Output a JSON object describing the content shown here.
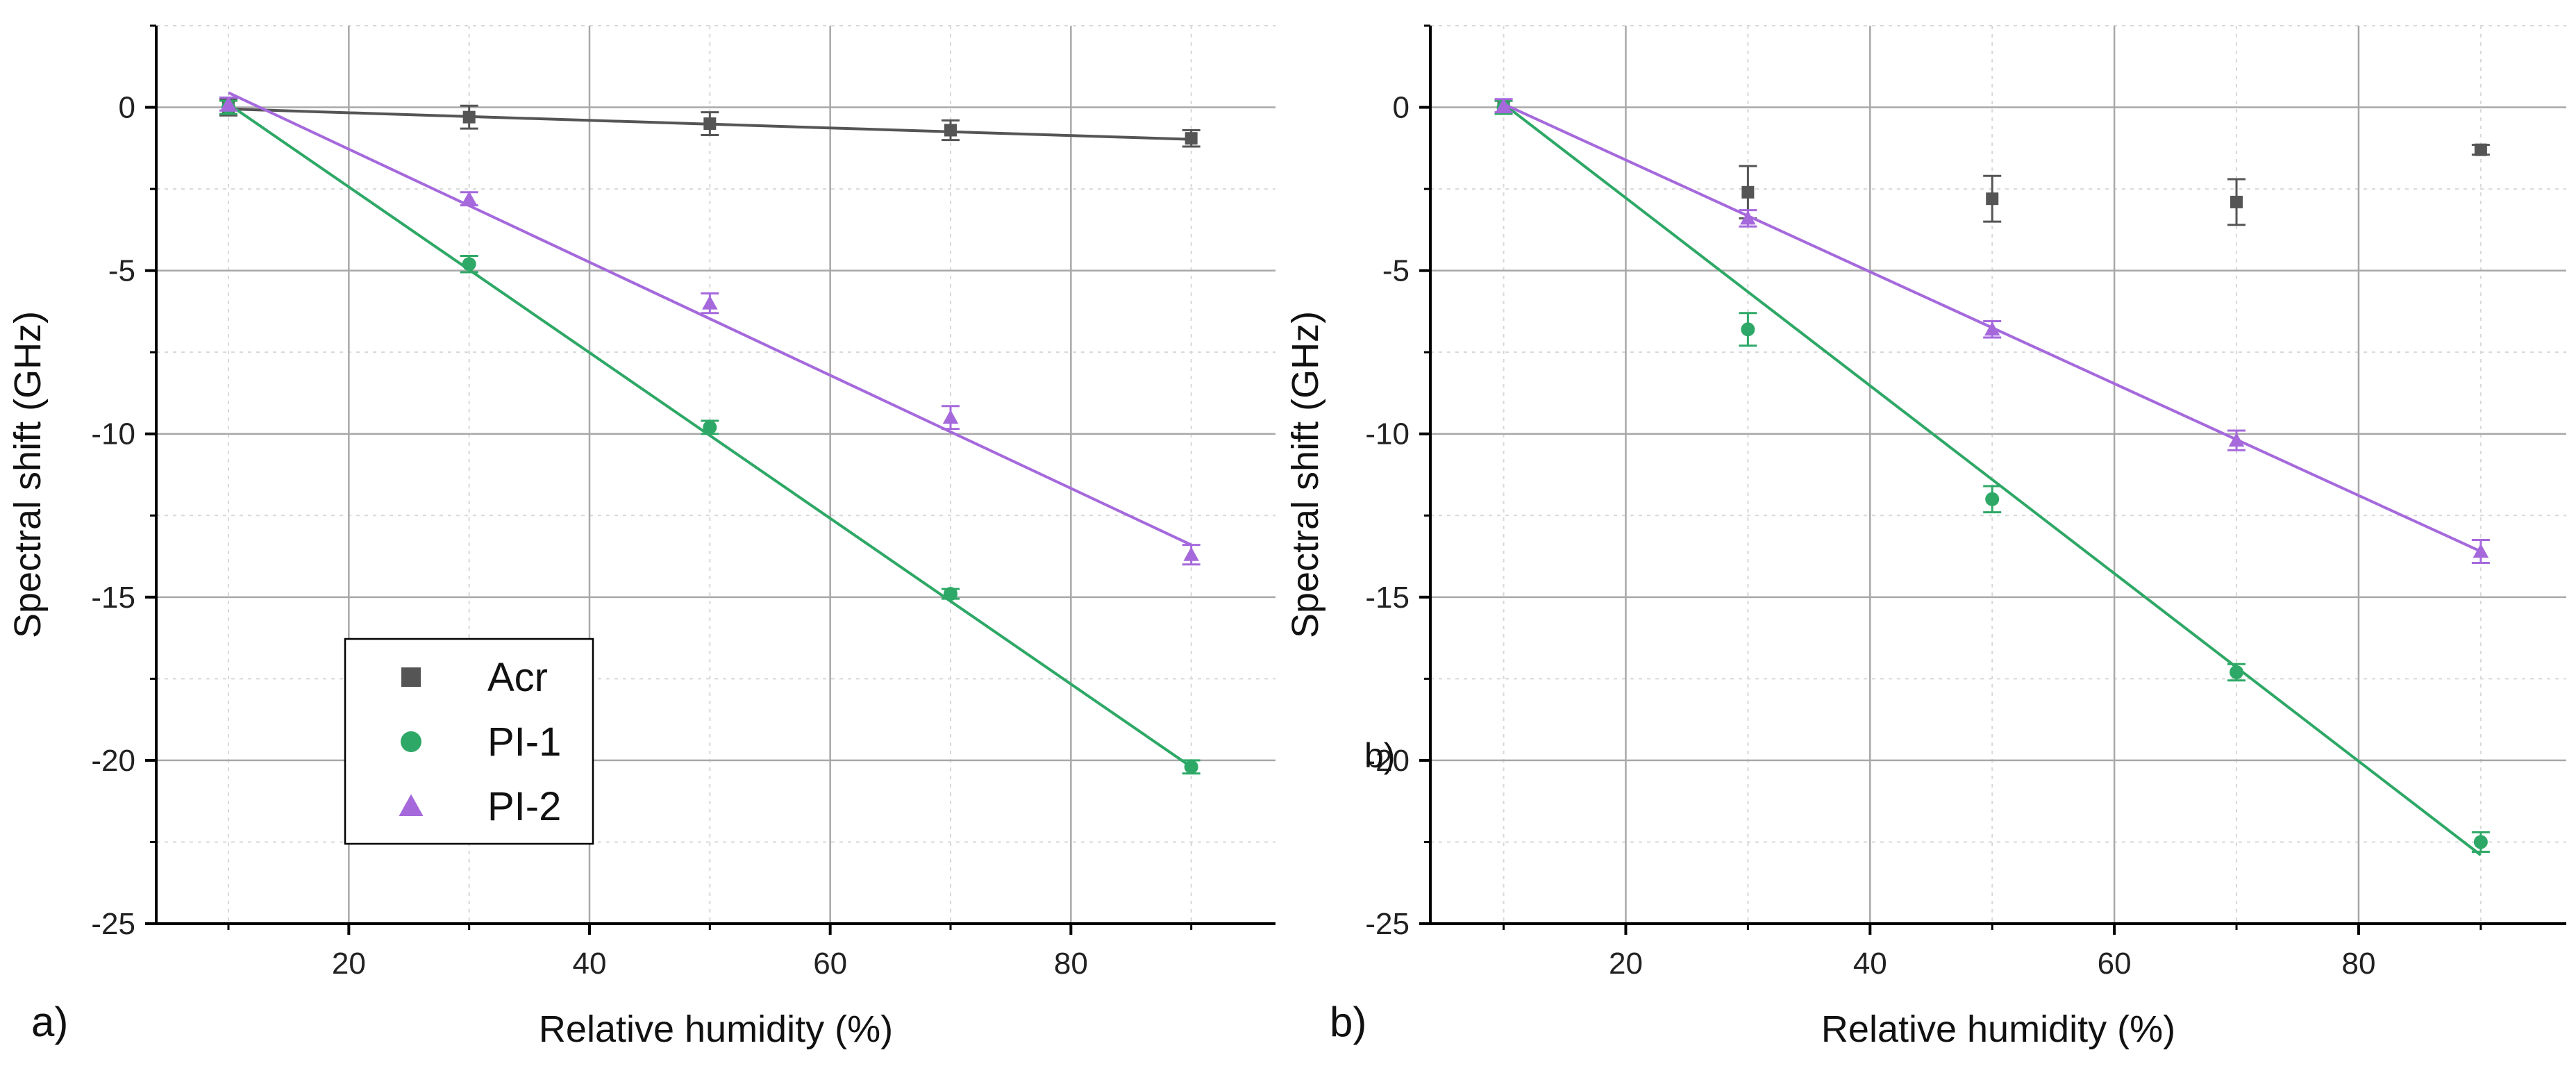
{
  "chart_data": [
    {
      "type": "scatter",
      "panel_label": "a)",
      "xlabel": "Relative humidity (%)",
      "ylabel": "Spectral shift (GHz)",
      "xlim": [
        4,
        97
      ],
      "ylim": [
        -25,
        2.5
      ],
      "xticks": [
        20,
        40,
        60,
        80
      ],
      "yticks": [
        0,
        -5,
        -10,
        -15,
        -20,
        -25
      ],
      "grid": true,
      "legend": {
        "position": "bottom-left",
        "entries": [
          "Acr",
          "PI-1",
          "PI-2"
        ]
      },
      "series": [
        {
          "name": "Acr",
          "marker": "square",
          "color": "#555555",
          "x": [
            10,
            30,
            50,
            70,
            90
          ],
          "y": [
            0,
            -0.3,
            -0.5,
            -0.7,
            -0.95
          ],
          "err": [
            0.25,
            0.35,
            0.35,
            0.3,
            0.25
          ],
          "fit": [
            [
              10,
              -0.05
            ],
            [
              90,
              -0.98
            ]
          ]
        },
        {
          "name": "PI-1",
          "marker": "circle",
          "color": "#2ea866",
          "x": [
            10,
            30,
            50,
            70,
            90
          ],
          "y": [
            0,
            -4.8,
            -9.8,
            -14.9,
            -20.2
          ],
          "err": [
            0.2,
            0.25,
            0.2,
            0.15,
            0.2
          ],
          "fit": [
            [
              10,
              0.1
            ],
            [
              90,
              -20.2
            ]
          ]
        },
        {
          "name": "PI-2",
          "marker": "triangle",
          "color": "#a569dc",
          "x": [
            10,
            30,
            50,
            70,
            90
          ],
          "y": [
            0.1,
            -2.8,
            -6.0,
            -9.5,
            -13.7
          ],
          "err": [
            0.2,
            0.2,
            0.3,
            0.35,
            0.3
          ],
          "fit": [
            [
              10,
              0.45
            ],
            [
              90,
              -13.4
            ]
          ]
        }
      ]
    },
    {
      "type": "scatter",
      "panel_label": "b)",
      "inner_label": "b)",
      "xlabel": "Relative humidity (%)",
      "ylabel": "Spectral shift (GHz)",
      "xlim": [
        4,
        97
      ],
      "ylim": [
        -25,
        2.5
      ],
      "xticks": [
        20,
        40,
        60,
        80
      ],
      "yticks": [
        0,
        -5,
        -10,
        -15,
        -20,
        -25
      ],
      "grid": true,
      "series": [
        {
          "name": "Acr",
          "marker": "square",
          "color": "#555555",
          "x": [
            10,
            30,
            50,
            70,
            90
          ],
          "y": [
            0,
            -2.6,
            -2.8,
            -2.9,
            -1.3
          ],
          "err": [
            0.2,
            0.8,
            0.7,
            0.7,
            0.15
          ],
          "fit": null
        },
        {
          "name": "PI-1",
          "marker": "circle",
          "color": "#2ea866",
          "x": [
            10,
            30,
            50,
            70,
            90
          ],
          "y": [
            0,
            -6.8,
            -12.0,
            -17.3,
            -22.5
          ],
          "err": [
            0.2,
            0.5,
            0.4,
            0.25,
            0.3
          ],
          "fit": [
            [
              10,
              0.1
            ],
            [
              90,
              -22.9
            ]
          ]
        },
        {
          "name": "PI-2",
          "marker": "triangle",
          "color": "#a569dc",
          "x": [
            10,
            30,
            50,
            70,
            90
          ],
          "y": [
            0.05,
            -3.4,
            -6.8,
            -10.2,
            -13.6
          ],
          "err": [
            0.2,
            0.25,
            0.25,
            0.3,
            0.35
          ],
          "fit": [
            [
              10,
              0.1
            ],
            [
              90,
              -13.6
            ]
          ]
        }
      ]
    }
  ]
}
